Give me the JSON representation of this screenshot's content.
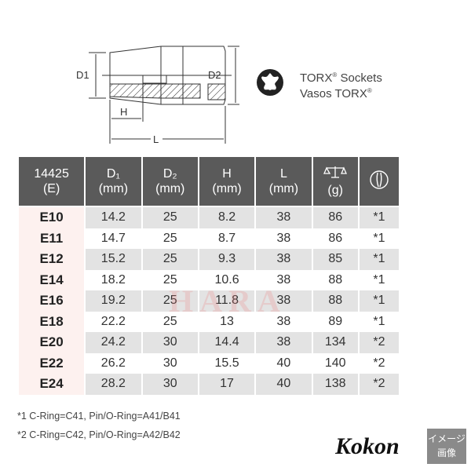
{
  "diagram": {
    "labels": {
      "d1": "D1",
      "d2": "D2",
      "h": "H",
      "l": "L"
    }
  },
  "torx": {
    "line1": "TORX",
    "line1_suffix": " Sockets",
    "line2": "Vasos TORX",
    "reg": "®"
  },
  "table": {
    "headers": [
      {
        "top": "14425",
        "bottom": "(E)"
      },
      {
        "top": "D₁",
        "bottom": "(mm)"
      },
      {
        "top": "D₂",
        "bottom": "(mm)"
      },
      {
        "top": "H",
        "bottom": "(mm)"
      },
      {
        "top": "L",
        "bottom": "(mm)"
      },
      {
        "icon": "scale-icon",
        "bottom": "(g)"
      },
      {
        "icon": "ring-pin-icon"
      }
    ],
    "rows": [
      [
        "E10",
        "14.2",
        "25",
        "8.2",
        "38",
        "86",
        "*1"
      ],
      [
        "E11",
        "14.7",
        "25",
        "8.7",
        "38",
        "86",
        "*1"
      ],
      [
        "E12",
        "15.2",
        "25",
        "9.3",
        "38",
        "85",
        "*1"
      ],
      [
        "E14",
        "18.2",
        "25",
        "10.6",
        "38",
        "88",
        "*1"
      ],
      [
        "E16",
        "19.2",
        "25",
        "11.8",
        "38",
        "88",
        "*1"
      ],
      [
        "E18",
        "22.2",
        "25",
        "13",
        "38",
        "89",
        "*1"
      ],
      [
        "E20",
        "24.2",
        "30",
        "14.4",
        "38",
        "134",
        "*2"
      ],
      [
        "E22",
        "26.2",
        "30",
        "15.5",
        "40",
        "140",
        "*2"
      ],
      [
        "E24",
        "28.2",
        "30",
        "17",
        "40",
        "138",
        "*2"
      ]
    ]
  },
  "watermark": "HARA",
  "notes": [
    "*1 C-Ring=C41, Pin/O-Ring=A41/B41",
    "*2 C-Ring=C42, Pin/O-Ring=A42/B42"
  ],
  "logo": "Kokon",
  "badge": {
    "line1": "イメージ",
    "line2": "画像"
  },
  "colors": {
    "header_bg": "#5a5a5a",
    "row_alt": "#e3e3e3",
    "code_col": "#fdf1ef"
  }
}
